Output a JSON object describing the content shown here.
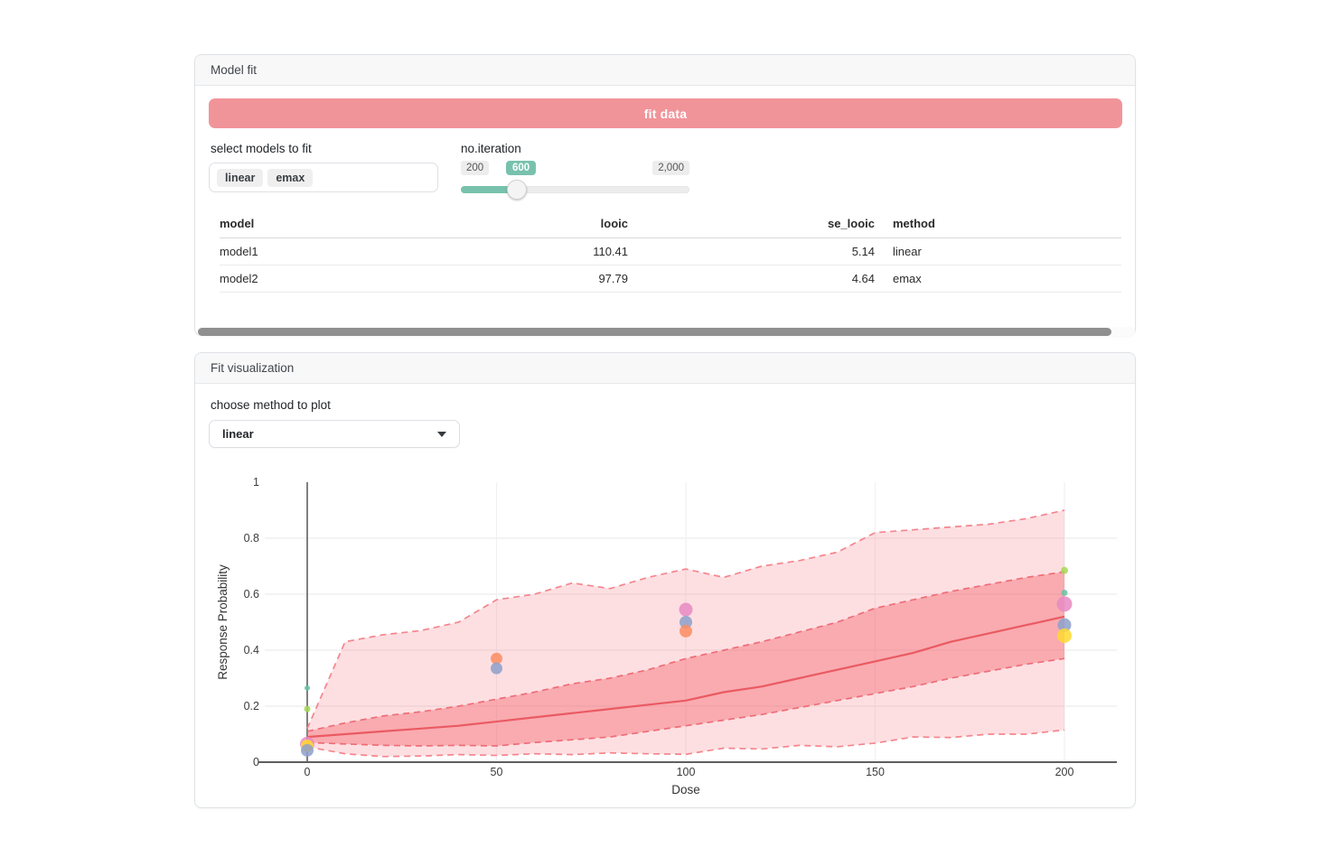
{
  "cards": {
    "model_fit": {
      "title": "Model fit",
      "fit_button_label": "fit data",
      "select_label": "select models to fit",
      "selected_models": [
        "linear",
        "emax"
      ],
      "slider": {
        "label": "no.iteration",
        "min_label": "200",
        "value_label": "600",
        "max_label": "2,000",
        "min": 200,
        "max": 2000,
        "value": 600
      },
      "table": {
        "headers": [
          "model",
          "looic",
          "se_looic",
          "method"
        ],
        "rows": [
          [
            "model1",
            "110.41",
            "5.14",
            "linear"
          ],
          [
            "model2",
            "97.79",
            "4.64",
            "emax"
          ]
        ]
      }
    },
    "fit_visualization": {
      "title": "Fit visualization",
      "method_label": "choose method to plot",
      "method_value": "linear"
    }
  },
  "colors": {
    "button_pink": "#f1949a",
    "slider_green": "#78c2ad",
    "scrollbar_thumb": "#8f8f8f"
  },
  "chart_data": {
    "type": "area",
    "title": "",
    "xlabel": "Dose",
    "ylabel": "Response Probability",
    "xlim": [
      0,
      200
    ],
    "ylim": [
      0,
      1
    ],
    "grid": true,
    "x_tick_labels": [
      "0",
      "50",
      "100",
      "150",
      "200"
    ],
    "x_tick_values": [
      0,
      50,
      100,
      150,
      200
    ],
    "y_tick_labels": [
      "0",
      "0.2",
      "0.4",
      "0.6",
      "0.8",
      "1"
    ],
    "y_tick_values": [
      0,
      0.2,
      0.4,
      0.6,
      0.8,
      1
    ],
    "x_gridlines": [
      50,
      100,
      150,
      200
    ],
    "y_gridlines": [
      0.2,
      0.4,
      0.6,
      0.8
    ],
    "ribbon_x": [
      0,
      10,
      20,
      30,
      40,
      50,
      60,
      70,
      80,
      90,
      100,
      110,
      120,
      130,
      140,
      150,
      160,
      170,
      180,
      190,
      200
    ],
    "outer_upper": [
      0.12,
      0.43,
      0.455,
      0.47,
      0.5,
      0.58,
      0.6,
      0.64,
      0.62,
      0.66,
      0.69,
      0.66,
      0.7,
      0.72,
      0.75,
      0.82,
      0.83,
      0.84,
      0.85,
      0.87,
      0.9
    ],
    "inner_upper": [
      0.11,
      0.14,
      0.165,
      0.18,
      0.2,
      0.225,
      0.25,
      0.28,
      0.3,
      0.33,
      0.37,
      0.4,
      0.43,
      0.465,
      0.5,
      0.55,
      0.58,
      0.61,
      0.635,
      0.66,
      0.68
    ],
    "median": [
      0.09,
      0.1,
      0.11,
      0.12,
      0.13,
      0.145,
      0.16,
      0.175,
      0.19,
      0.205,
      0.22,
      0.25,
      0.27,
      0.3,
      0.33,
      0.36,
      0.39,
      0.43,
      0.46,
      0.49,
      0.52
    ],
    "inner_lower": [
      0.07,
      0.065,
      0.06,
      0.058,
      0.06,
      0.058,
      0.07,
      0.08,
      0.09,
      0.11,
      0.13,
      0.15,
      0.17,
      0.195,
      0.22,
      0.245,
      0.27,
      0.3,
      0.325,
      0.35,
      0.37
    ],
    "outer_lower": [
      0.055,
      0.03,
      0.02,
      0.022,
      0.027,
      0.024,
      0.03,
      0.027,
      0.033,
      0.03,
      0.028,
      0.05,
      0.047,
      0.06,
      0.055,
      0.068,
      0.09,
      0.088,
      0.1,
      0.1,
      0.115
    ],
    "points": [
      {
        "x": 0,
        "y": 0.265,
        "color": "#66c2a5",
        "r": 3
      },
      {
        "x": 0,
        "y": 0.19,
        "color": "#a6d854",
        "r": 3.5
      },
      {
        "x": 0,
        "y": 0.065,
        "color": "#e78ac3",
        "r": 8
      },
      {
        "x": 0,
        "y": 0.058,
        "color": "#ffd92f",
        "r": 7
      },
      {
        "x": 0,
        "y": 0.042,
        "color": "#8da0cb",
        "r": 7
      },
      {
        "x": 50,
        "y": 0.37,
        "color": "#fc8d62",
        "r": 6.5
      },
      {
        "x": 50,
        "y": 0.335,
        "color": "#8da0cb",
        "r": 6.5
      },
      {
        "x": 100,
        "y": 0.545,
        "color": "#e78ac3",
        "r": 7.5
      },
      {
        "x": 100,
        "y": 0.5,
        "color": "#8da0cb",
        "r": 7
      },
      {
        "x": 100,
        "y": 0.468,
        "color": "#fc8d62",
        "r": 7
      },
      {
        "x": 200,
        "y": 0.685,
        "color": "#a6d854",
        "r": 4
      },
      {
        "x": 200,
        "y": 0.605,
        "color": "#66c2a5",
        "r": 3.5
      },
      {
        "x": 200,
        "y": 0.565,
        "color": "#e78ac3",
        "r": 8.5
      },
      {
        "x": 200,
        "y": 0.49,
        "color": "#8da0cb",
        "r": 7.5
      },
      {
        "x": 200,
        "y": 0.452,
        "color": "#ffd92f",
        "r": 8
      }
    ],
    "colors": {
      "outer_fill": "rgba(246,111,121,0.22)",
      "inner_fill": "rgba(244,103,112,0.43)",
      "outer_edge": "#f5858d",
      "inner_edge": "#ef6d76",
      "line": "#ea5a62",
      "axis": "#5f5f5f",
      "grid": "#ececec",
      "tick_text": "#3c3c3c"
    },
    "legend": null
  }
}
